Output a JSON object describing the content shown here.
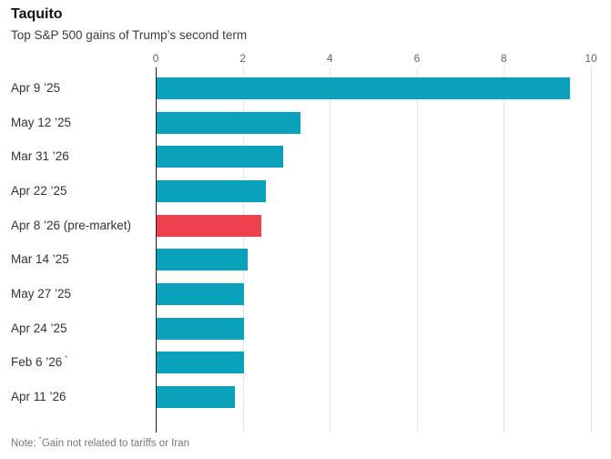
{
  "chart_data": {
    "type": "bar",
    "orientation": "horizontal",
    "title": "Taquito",
    "subtitle": "Top S&P 500 gains of Trump’s second term",
    "xlabel": "",
    "ylabel": "",
    "xlim": [
      0,
      10
    ],
    "x_ticks": [
      0,
      2,
      4,
      6,
      8,
      10
    ],
    "grid": true,
    "categories": [
      "Apr 9 ’25",
      "May 12 ’25",
      "Mar 31 ’26",
      "Apr 22 ’25",
      "Apr 8 ’26 (pre-market)",
      "Mar 14 ’25",
      "May 27 ’25",
      "Apr 24 ’25",
      "Feb 6 ’26",
      "Apr 11 ’26"
    ],
    "category_footnote_marks": [
      "",
      "",
      "",
      "",
      "",
      "",
      "",
      "",
      "*",
      ""
    ],
    "values": [
      9.5,
      3.3,
      2.9,
      2.5,
      2.4,
      2.1,
      2.0,
      2.0,
      2.0,
      1.8
    ],
    "highlighted_index": 4
  },
  "note": {
    "prefix": "Note: ",
    "asterisk": "*",
    "text": "Gain not related to tariffs or Iran"
  },
  "colors": {
    "bar": "#0aa1bb",
    "highlight": "#ee414d",
    "grid": "#e4e4e4",
    "zero_line": "#1c1c1c",
    "axis_label": "#666666",
    "row_label": "#333333"
  }
}
